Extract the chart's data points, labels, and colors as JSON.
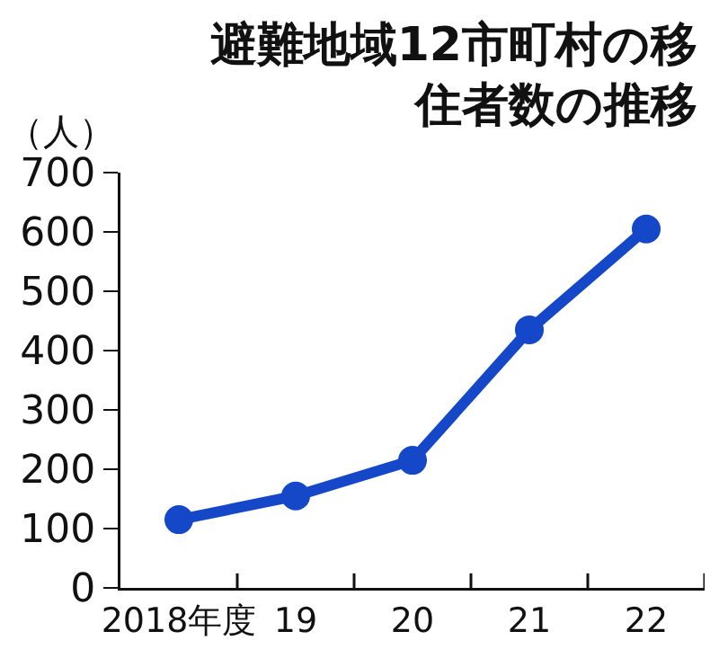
{
  "chart_data": {
    "type": "line",
    "title": "避難地域12市町村の移住者数の推移",
    "ylabel": "（人）",
    "categories": [
      "2018年度",
      "19",
      "20",
      "21",
      "22"
    ],
    "series": [
      {
        "color": "#1448c8",
        "values": [
          115,
          155,
          215,
          435,
          605
        ]
      }
    ],
    "ylim": [
      0,
      700
    ],
    "yticks": [
      0,
      100,
      200,
      300,
      400,
      500,
      600,
      700
    ],
    "grid": false,
    "marker": "circle",
    "line_style": "solid"
  }
}
